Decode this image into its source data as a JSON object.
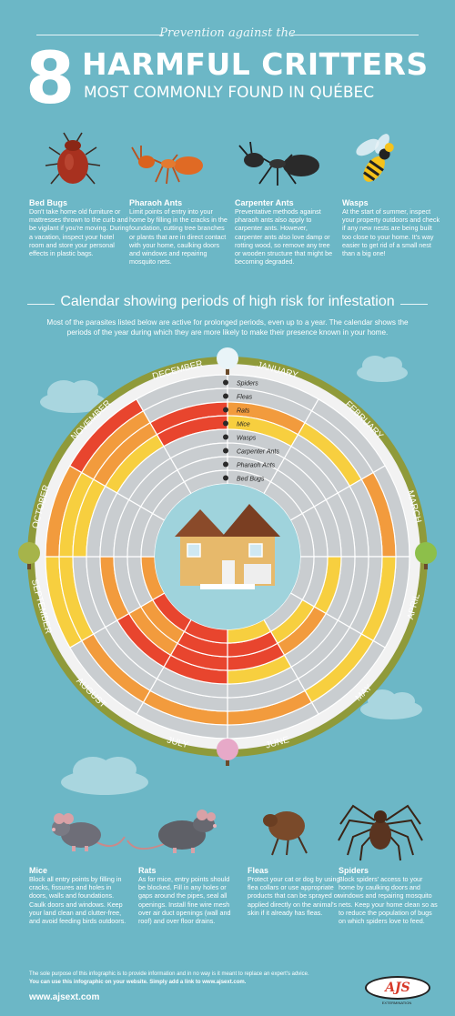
{
  "header": {
    "kicker": "Prevention against the",
    "number": "8",
    "title": "HARMFUL CRITTERS",
    "subtitle": "MOST COMMONLY FOUND IN QUÉBEC"
  },
  "critters_top": [
    {
      "name": "Bed Bugs",
      "text": "Don't take home old furniture or mattresses thrown to the curb and be vigilant if you're moving. During a vacation, inspect your hotel room and store your personal effects in plastic bags."
    },
    {
      "name": "Pharaoh Ants",
      "text": "Limit points of entry into your home by filling in the cracks in the foundation, cutting tree branches or plants that are in direct contact with your home, caulking doors and windows and repairing mosquito nets."
    },
    {
      "name": "Carpenter Ants",
      "text": "Preventative methods against pharaoh ants also apply to carpenter ants. However, carpenter ants also love damp or rotting wood, so remove any tree or wooden structure that might be becoming degraded."
    },
    {
      "name": "Wasps",
      "text": "At the start of summer, inspect your property outdoors and check if any new nests are being built too close to your home. It's way easier to get rid of a small nest than a big one!"
    }
  ],
  "calendar": {
    "title": "Calendar showing periods of high risk for infestation",
    "intro": "Most of the parasites listed below are active for prolonged periods, even up to a year. The calendar shows the periods of the year during which they are more likely to make their presence known in your home.",
    "months": [
      "JANUARY",
      "FEBRUARY",
      "MARCH",
      "APRIL",
      "MAY",
      "JUNE",
      "JULY",
      "AUGUST",
      "SEPTEMBER",
      "OCTOBER",
      "NOVEMBER",
      "DECEMBER"
    ],
    "rings": [
      "Spiders",
      "Fleas",
      "Rats",
      "Mice",
      "Wasps",
      "Carpenter Ants",
      "Pharaoh Ants",
      "Bed Bugs"
    ],
    "colors": {
      "gray": "#c9cdd0",
      "red": "#e8452e",
      "orange": "#f29b3d",
      "yellow": "#f7cf3f",
      "lightgray": "#d8dadc"
    }
  },
  "critters_bottom": [
    {
      "name": "Mice",
      "text": "Block all entry points by filling in cracks, fissures and holes in doors, walls and foundations. Caulk doors and windows. Keep your land clean and clutter-free, and avoid feeding birds outdoors."
    },
    {
      "name": "Rats",
      "text": "As for mice, entry points should be blocked. Fill in any holes or gaps around the pipes, seal all openings. Install fine wire mesh over air duct openings (wall and roof) and over floor drains."
    },
    {
      "name": "Fleas",
      "text": "Protect your cat or dog by using flea collars or use appropriate products that can be sprayed or applied directly on the animal's skin if it already has fleas."
    },
    {
      "name": "Spiders",
      "text": "Block spiders' access to your home by caulking doors and windows and repairing mosquito nets. Keep your home clean so as to reduce the population of bugs on which spiders love to feed."
    }
  ],
  "footer": {
    "disclaimer": "The sole purpose of this infographic is to provide information and in no way is it meant to replace an expert's advice.",
    "usage": "You can use this infographic on your website. Simply add a link to www.ajsext.com.",
    "website": "www.ajsext.com",
    "logo": "AJS",
    "logo_sub": "EXTERMINATION"
  }
}
